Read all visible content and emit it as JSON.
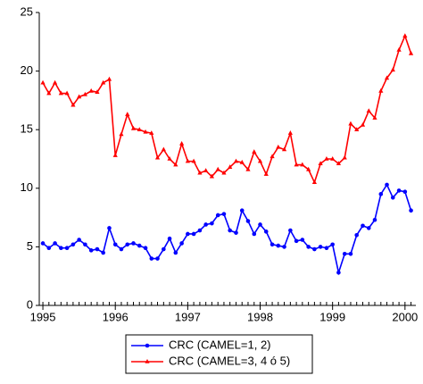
{
  "chart_data": {
    "type": "line",
    "x": [
      1995,
      1995.083,
      1995.167,
      1995.25,
      1995.333,
      1995.417,
      1995.5,
      1995.583,
      1995.667,
      1995.75,
      1995.833,
      1995.917,
      1996,
      1996.083,
      1996.167,
      1996.25,
      1996.333,
      1996.417,
      1996.5,
      1996.583,
      1996.667,
      1996.75,
      1996.833,
      1996.917,
      1997,
      1997.083,
      1997.167,
      1997.25,
      1997.333,
      1997.417,
      1997.5,
      1997.583,
      1997.667,
      1997.75,
      1997.833,
      1997.917,
      1998,
      1998.083,
      1998.167,
      1998.25,
      1998.333,
      1998.417,
      1998.5,
      1998.583,
      1998.667,
      1998.75,
      1998.833,
      1998.917,
      1999,
      1999.083,
      1999.167,
      1999.25,
      1999.333,
      1999.417,
      1999.5,
      1999.583,
      1999.667,
      1999.75,
      1999.833,
      1999.917,
      2000,
      2000.083
    ],
    "series": [
      {
        "name": "CRC (CAMEL=1, 2)",
        "color": "#0000ff",
        "values": [
          5.3,
          4.9,
          5.3,
          4.9,
          4.9,
          5.2,
          5.6,
          5.2,
          4.7,
          4.8,
          4.5,
          6.6,
          5.2,
          4.8,
          5.2,
          5.3,
          5.1,
          4.9,
          4.0,
          4.0,
          4.8,
          5.7,
          4.5,
          5.3,
          6.1,
          6.1,
          6.4,
          6.9,
          7.0,
          7.7,
          7.8,
          6.4,
          6.2,
          8.1,
          7.2,
          6.1,
          6.9,
          6.3,
          5.2,
          5.1,
          5.0,
          6.4,
          5.5,
          5.6,
          5.0,
          4.8,
          5.0,
          4.9,
          5.2,
          2.8,
          4.4,
          4.4,
          6.0,
          6.8,
          6.6,
          7.3,
          9.5,
          10.3,
          9.2,
          9.8,
          9.7,
          8.1
        ]
      },
      {
        "name": "CRC (CAMEL=3, 4 ó 5)",
        "color": "#ff0000",
        "values": [
          19.0,
          18.1,
          19.0,
          18.1,
          18.1,
          17.1,
          17.8,
          18.0,
          18.3,
          18.2,
          19.0,
          19.3,
          12.8,
          14.6,
          16.3,
          15.1,
          15.0,
          14.8,
          14.7,
          12.6,
          13.3,
          12.5,
          12.0,
          13.8,
          12.3,
          12.3,
          11.3,
          11.5,
          11.0,
          11.6,
          11.3,
          11.8,
          12.3,
          12.2,
          11.6,
          13.1,
          12.3,
          11.2,
          12.7,
          13.5,
          13.3,
          14.7,
          12.0,
          12.0,
          11.6,
          10.5,
          12.1,
          12.5,
          12.5,
          12.1,
          12.6,
          15.5,
          15.0,
          15.4,
          16.6,
          16.0,
          18.3,
          19.4,
          20.1,
          21.8,
          23.0,
          21.5
        ]
      }
    ],
    "xlim": [
      1994.95,
      2000.15
    ],
    "xticks": [
      1995,
      1996,
      1997,
      1998,
      1999,
      2000
    ],
    "ylim": [
      0,
      25
    ],
    "yticks": [
      0,
      5,
      10,
      15,
      20,
      25
    ],
    "grid": false,
    "legend": "bottom"
  }
}
